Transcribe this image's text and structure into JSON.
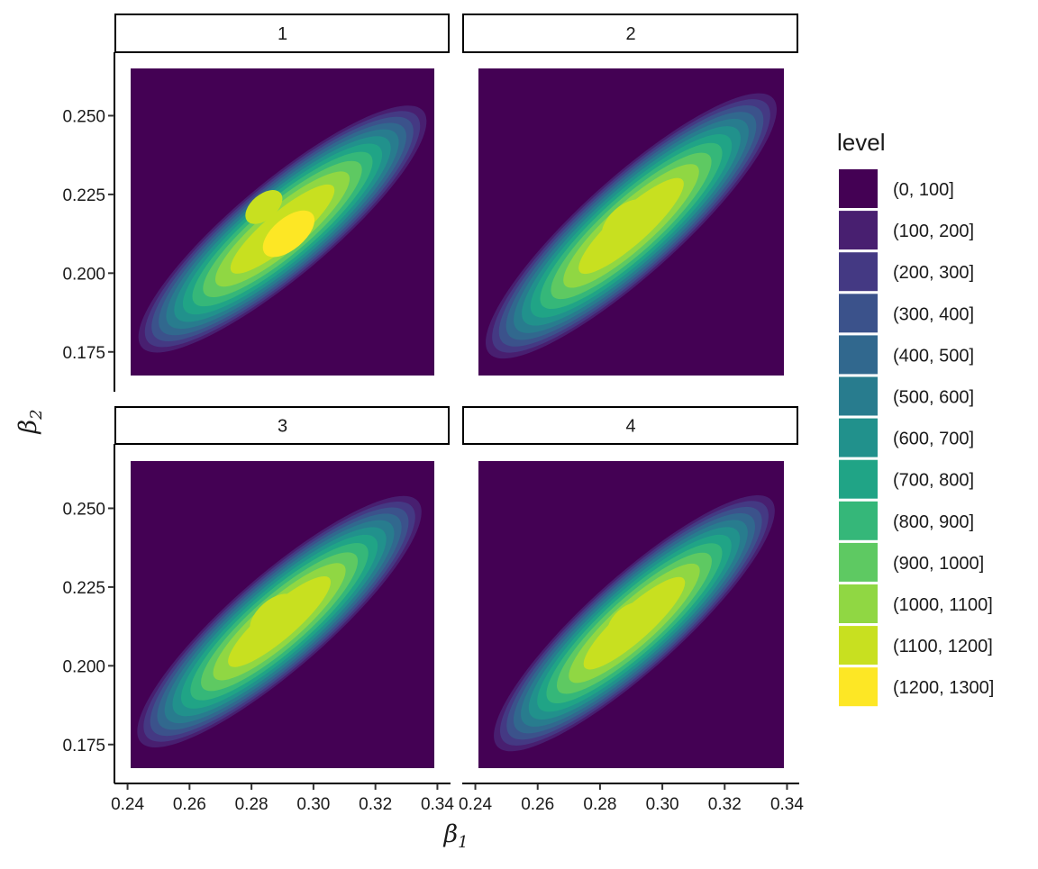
{
  "chart_data": {
    "type": "heatmap",
    "subtype": "filled-density-contour",
    "facet_layout": "2x2 grid",
    "facets": [
      {
        "label": "1",
        "peaks": [
          {
            "x": 0.292,
            "y": 0.2125,
            "level": "(1200, 1300]"
          },
          {
            "x": 0.284,
            "y": 0.221,
            "level": "(1100, 1200]"
          }
        ]
      },
      {
        "label": "2",
        "peaks": [
          {
            "x": 0.288,
            "y": 0.2165,
            "level": "(1100, 1200]"
          }
        ]
      },
      {
        "label": "3",
        "peaks": [
          {
            "x": 0.287,
            "y": 0.216,
            "level": "(1100, 1200]"
          }
        ]
      },
      {
        "label": "4",
        "peaks": [
          {
            "x": 0.289,
            "y": 0.214,
            "level": "(1100, 1200]"
          }
        ]
      }
    ],
    "xlabel": "β1",
    "ylabel": "β2",
    "x_ticks": [
      "0.24",
      "0.26",
      "0.28",
      "0.30",
      "0.32",
      "0.34"
    ],
    "y_ticks": [
      "0.175",
      "0.200",
      "0.225",
      "0.250"
    ],
    "xlim": [
      0.241,
      0.339
    ],
    "ylim": [
      0.1675,
      0.265
    ],
    "tick_xlim": [
      0.236,
      0.34
    ],
    "tick_ylim": [
      0.1625,
      0.2665
    ],
    "legend_title": "level",
    "legend_position": "right",
    "levels": [
      "(0, 100]",
      "(100, 200]",
      "(200, 300]",
      "(300, 400]",
      "(400, 500]",
      "(500, 600]",
      "(600, 700]",
      "(700, 800]",
      "(800, 900]",
      "(900, 1000]",
      "(1000, 1100]",
      "(1100, 1200]",
      "(1200, 1300]"
    ],
    "level_colors": [
      "#440154",
      "#481f70",
      "#443983",
      "#3b528b",
      "#31688e",
      "#287c8e",
      "#21918c",
      "#20a486",
      "#35b779",
      "#5ec962",
      "#90d743",
      "#c8e020",
      "#fde725"
    ],
    "grid": false
  }
}
